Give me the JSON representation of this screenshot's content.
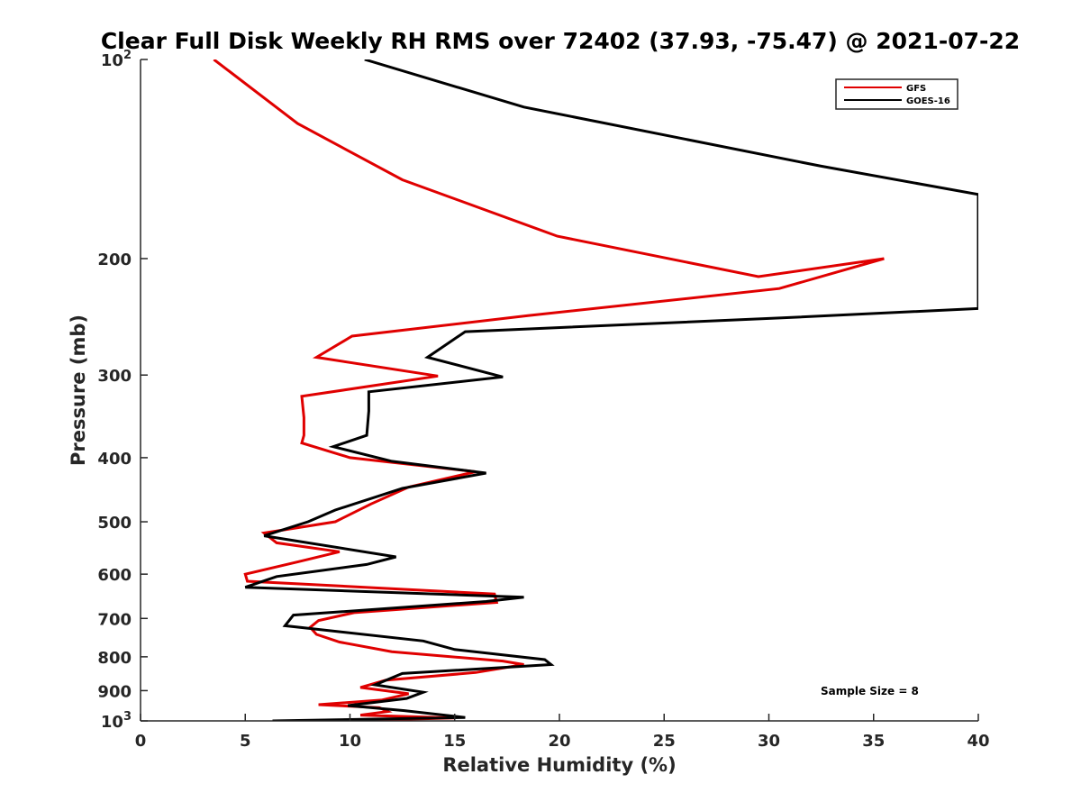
{
  "chart_data": {
    "type": "line",
    "title": "Clear Full Disk Weekly RH RMS over 72402 (37.93, -75.47) @ 2021-07-22",
    "xlabel": "Relative Humidity (%)",
    "ylabel": "Pressure (mb)",
    "xlim": [
      0,
      40
    ],
    "ylim": [
      100,
      1000
    ],
    "yscale": "log",
    "y_reversed": true,
    "x_ticks": [
      "0",
      "5",
      "10",
      "15",
      "20",
      "25",
      "30",
      "35",
      "40"
    ],
    "y_ticks": [
      {
        "value": 100,
        "label": "10",
        "exp": "2"
      },
      {
        "value": 200,
        "label": "200"
      },
      {
        "value": 300,
        "label": "300"
      },
      {
        "value": 400,
        "label": "400"
      },
      {
        "value": 500,
        "label": "500"
      },
      {
        "value": 600,
        "label": "600"
      },
      {
        "value": 700,
        "label": "700"
      },
      {
        "value": 800,
        "label": "800"
      },
      {
        "value": 900,
        "label": "900"
      },
      {
        "value": 1000,
        "label": "10",
        "exp": "3"
      }
    ],
    "legend_position": "top-right",
    "annotation": "Sample Size = 8",
    "series": [
      {
        "name": "GFS",
        "color": "#e00000",
        "points": [
          [
            3.5,
            100
          ],
          [
            7.5,
            125
          ],
          [
            12.5,
            152
          ],
          [
            19.9,
            185
          ],
          [
            29.5,
            213
          ],
          [
            35.5,
            200
          ],
          [
            30.5,
            222
          ],
          [
            18.5,
            244
          ],
          [
            10.1,
            262
          ],
          [
            8.4,
            282
          ],
          [
            14.2,
            301
          ],
          [
            7.7,
            323
          ],
          [
            7.8,
            348
          ],
          [
            7.8,
            370
          ],
          [
            7.7,
            380
          ],
          [
            10.0,
            400
          ],
          [
            16.0,
            420
          ],
          [
            12.8,
            443
          ],
          [
            11.0,
            470
          ],
          [
            9.3,
            500
          ],
          [
            5.9,
            520
          ],
          [
            6.5,
            538
          ],
          [
            9.5,
            555
          ],
          [
            7.5,
            575
          ],
          [
            5.0,
            600
          ],
          [
            5.1,
            615
          ],
          [
            16.9,
            643
          ],
          [
            17.0,
            662
          ],
          [
            10.2,
            686
          ],
          [
            8.5,
            705
          ],
          [
            8.1,
            722
          ],
          [
            8.4,
            740
          ],
          [
            9.5,
            760
          ],
          [
            12.0,
            786
          ],
          [
            17.3,
            812
          ],
          [
            18.3,
            822
          ],
          [
            16.0,
            845
          ],
          [
            11.7,
            868
          ],
          [
            10.5,
            890
          ],
          [
            12.8,
            910
          ],
          [
            11.5,
            930
          ],
          [
            8.5,
            945
          ],
          [
            11.4,
            955
          ],
          [
            11.8,
            968
          ],
          [
            10.5,
            980
          ],
          [
            15.0,
            990
          ],
          [
            9.5,
            1000
          ]
        ]
      },
      {
        "name": "GOES-16",
        "color": "#000000",
        "points": [
          [
            10.7,
            100
          ],
          [
            18.3,
            118
          ],
          [
            32.5,
            145
          ],
          [
            40.0,
            160
          ],
          [
            40.0,
            238
          ],
          [
            30.5,
            246
          ],
          [
            15.5,
            258
          ],
          [
            13.7,
            282
          ],
          [
            17.3,
            302
          ],
          [
            10.9,
            318
          ],
          [
            10.9,
            340
          ],
          [
            10.8,
            370
          ],
          [
            9.2,
            385
          ],
          [
            12.0,
            405
          ],
          [
            16.5,
            422
          ],
          [
            12.5,
            445
          ],
          [
            9.3,
            480
          ],
          [
            8.0,
            500
          ],
          [
            5.9,
            525
          ],
          [
            12.2,
            565
          ],
          [
            10.8,
            580
          ],
          [
            6.5,
            605
          ],
          [
            5.0,
            628
          ],
          [
            18.3,
            650
          ],
          [
            16.5,
            660
          ],
          [
            7.3,
            692
          ],
          [
            6.9,
            718
          ],
          [
            13.5,
            757
          ],
          [
            15.0,
            780
          ],
          [
            19.3,
            808
          ],
          [
            19.6,
            822
          ],
          [
            12.5,
            848
          ],
          [
            11.2,
            882
          ],
          [
            13.5,
            905
          ],
          [
            12.7,
            925
          ],
          [
            9.9,
            948
          ],
          [
            12.6,
            965
          ],
          [
            15.5,
            988
          ],
          [
            6.3,
            1000
          ]
        ]
      }
    ]
  }
}
